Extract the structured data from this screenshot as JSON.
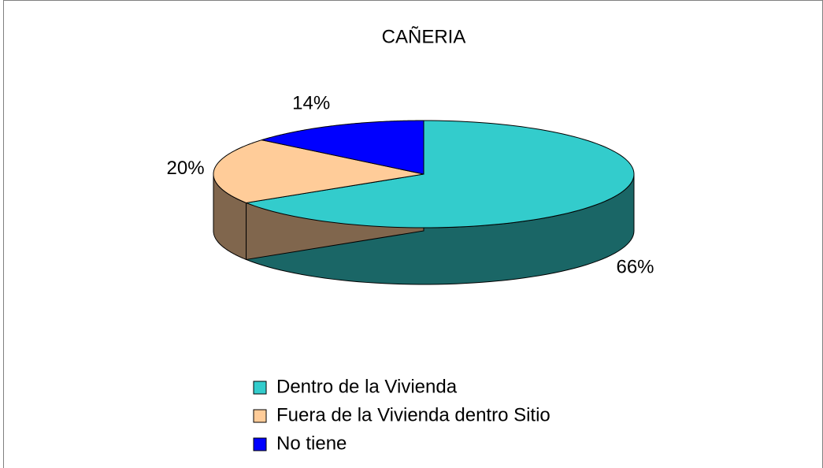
{
  "chart_data": {
    "type": "pie",
    "title": "CAÑERIA",
    "categories": [
      "Dentro de la Vivienda",
      "Fuera de la Vivienda dentro Sitio",
      "No tiene"
    ],
    "values": [
      66,
      20,
      14
    ],
    "value_labels": [
      "66%",
      "20%",
      "14%"
    ],
    "colors": [
      "#33cccc",
      "#ffcc99",
      "#0000ff"
    ],
    "legend": "bottom"
  }
}
